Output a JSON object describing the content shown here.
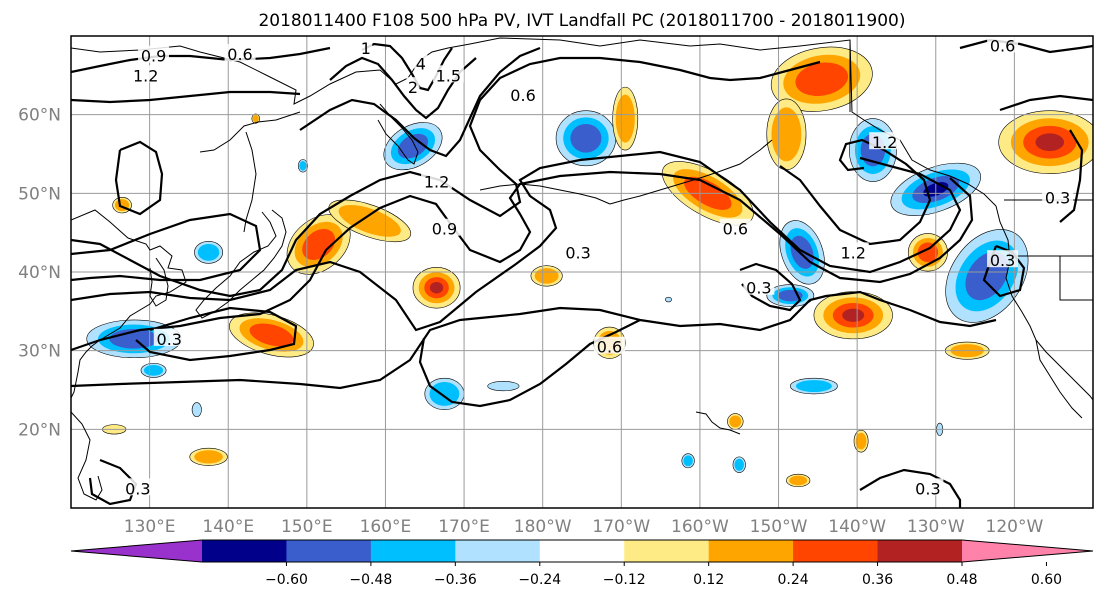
{
  "title": "2018011400 F108 500 hPa PV, IVT Landfall PC (2018011700 - 2018011900)",
  "map": {
    "lon_range": [
      120,
      250
    ],
    "lat_range": [
      10,
      70
    ],
    "lon_ticks": [
      {
        "value": 130,
        "label": "130°E"
      },
      {
        "value": 140,
        "label": "140°E"
      },
      {
        "value": 150,
        "label": "150°E"
      },
      {
        "value": 160,
        "label": "160°E"
      },
      {
        "value": 170,
        "label": "170°E"
      },
      {
        "value": 180,
        "label": "180°W"
      },
      {
        "value": 190,
        "label": "170°W"
      },
      {
        "value": 200,
        "label": "160°W"
      },
      {
        "value": 210,
        "label": "150°W"
      },
      {
        "value": 220,
        "label": "140°W"
      },
      {
        "value": 230,
        "label": "130°W"
      },
      {
        "value": 240,
        "label": "120°W"
      }
    ],
    "lat_ticks": [
      {
        "value": 20,
        "label": "20°N"
      },
      {
        "value": 30,
        "label": "30°N"
      },
      {
        "value": 40,
        "label": "40°N"
      },
      {
        "value": 50,
        "label": "50°N"
      },
      {
        "value": 60,
        "label": "60°N"
      }
    ],
    "grid": true
  },
  "contour_labels": [
    {
      "text": "0.9",
      "lon": 130.5,
      "lat": 67.5
    },
    {
      "text": "0.6",
      "lon": 141.5,
      "lat": 67.7
    },
    {
      "text": "1.2",
      "lon": 129.5,
      "lat": 65.0
    },
    {
      "text": "1",
      "lon": 157.5,
      "lat": 68.5
    },
    {
      "text": "4",
      "lon": 164.5,
      "lat": 66.5
    },
    {
      "text": "2",
      "lon": 163.5,
      "lat": 63.5
    },
    {
      "text": "1.5",
      "lon": 168.0,
      "lat": 65.0
    },
    {
      "text": "0.6",
      "lon": 177.5,
      "lat": 62.5
    },
    {
      "text": "1.2",
      "lon": 166.5,
      "lat": 51.5
    },
    {
      "text": "0.9",
      "lon": 167.5,
      "lat": 45.5
    },
    {
      "text": "0.3",
      "lon": 184.5,
      "lat": 42.5
    },
    {
      "text": "0.6",
      "lon": 204.5,
      "lat": 45.5
    },
    {
      "text": "0.3",
      "lon": 207.5,
      "lat": 38.0
    },
    {
      "text": "1.2",
      "lon": 219.5,
      "lat": 42.5
    },
    {
      "text": "1.2",
      "lon": 223.5,
      "lat": 56.5
    },
    {
      "text": "0.6",
      "lon": 188.5,
      "lat": 30.5
    },
    {
      "text": "0.6",
      "lon": 238.5,
      "lat": 68.8
    },
    {
      "text": "0.3",
      "lon": 229.0,
      "lat": 12.5
    },
    {
      "text": "0.3",
      "lon": 132.5,
      "lat": 31.5
    },
    {
      "text": "0.3",
      "lon": 128.5,
      "lat": 12.5
    },
    {
      "text": "0.3",
      "lon": 238.5,
      "lat": 41.5
    },
    {
      "text": "0.3",
      "lon": 245.5,
      "lat": 49.5
    }
  ],
  "colorbar": {
    "colors": [
      "#9932cc",
      "#00008b",
      "#3a5fcd",
      "#00bfff",
      "#b0e2ff",
      "#ffffff",
      "#ffeb85",
      "#ffa500",
      "#ff4500",
      "#b22222",
      "#ff82ab"
    ],
    "ticks": [
      "−0.60",
      "−0.48",
      "−0.36",
      "−0.24",
      "−0.12",
      "0.12",
      "0.24",
      "0.36",
      "0.48",
      "0.60"
    ]
  },
  "shading_levels": {
    "neg": [
      "#b0e2ff",
      "#00bfff",
      "#3a5fcd",
      "#00008b"
    ],
    "pos": [
      "#ffeb85",
      "#ffa500",
      "#ff4500",
      "#b22222"
    ]
  },
  "anomalies": [
    {
      "lon": 215.5,
      "lat": 64.5,
      "rx": 6.5,
      "ry": 4.0,
      "rot": -10,
      "sign": 1,
      "level": 3
    },
    {
      "lon": 211.0,
      "lat": 57.5,
      "rx": 2.5,
      "ry": 4.5,
      "rot": 0,
      "sign": 1,
      "level": 2
    },
    {
      "lon": 244.5,
      "lat": 56.5,
      "rx": 6.5,
      "ry": 4.0,
      "rot": 0,
      "sign": 1,
      "level": 4
    },
    {
      "lon": 185.5,
      "lat": 57.0,
      "rx": 3.8,
      "ry": 3.5,
      "rot": 0,
      "sign": -1,
      "level": 3
    },
    {
      "lon": 163.5,
      "lat": 56.0,
      "rx": 4.0,
      "ry": 2.6,
      "rot": -30,
      "sign": -1,
      "level": 3
    },
    {
      "lon": 190.5,
      "lat": 59.5,
      "rx": 1.6,
      "ry": 4.0,
      "rot": 0,
      "sign": 1,
      "level": 2
    },
    {
      "lon": 222.0,
      "lat": 55.5,
      "rx": 3.0,
      "ry": 4.0,
      "rot": 0,
      "sign": -1,
      "level": 3
    },
    {
      "lon": 230.0,
      "lat": 50.5,
      "rx": 6.0,
      "ry": 2.8,
      "rot": -20,
      "sign": -1,
      "level": 4
    },
    {
      "lon": 201.0,
      "lat": 50.0,
      "rx": 6.5,
      "ry": 2.8,
      "rot": 30,
      "sign": 1,
      "level": 3
    },
    {
      "lon": 213.0,
      "lat": 42.5,
      "rx": 2.6,
      "ry": 4.2,
      "rot": -20,
      "sign": -1,
      "level": 3
    },
    {
      "lon": 236.5,
      "lat": 39.5,
      "rx": 4.5,
      "ry": 6.5,
      "rot": 35,
      "sign": -1,
      "level": 3
    },
    {
      "lon": 229.0,
      "lat": 42.5,
      "rx": 2.5,
      "ry": 2.4,
      "rot": 0,
      "sign": 1,
      "level": 3
    },
    {
      "lon": 219.5,
      "lat": 34.5,
      "rx": 5.0,
      "ry": 3.0,
      "rot": 0,
      "sign": 1,
      "level": 4
    },
    {
      "lon": 151.5,
      "lat": 43.5,
      "rx": 4.5,
      "ry": 3.2,
      "rot": -40,
      "sign": 1,
      "level": 3
    },
    {
      "lon": 158.0,
      "lat": 46.5,
      "rx": 5.5,
      "ry": 2.0,
      "rot": 20,
      "sign": 1,
      "level": 2
    },
    {
      "lon": 145.5,
      "lat": 32.0,
      "rx": 5.5,
      "ry": 2.5,
      "rot": 15,
      "sign": 1,
      "level": 3
    },
    {
      "lon": 128.0,
      "lat": 31.5,
      "rx": 6.0,
      "ry": 2.4,
      "rot": 0,
      "sign": -1,
      "level": 3
    },
    {
      "lon": 166.5,
      "lat": 38.0,
      "rx": 3.0,
      "ry": 2.6,
      "rot": 0,
      "sign": 1,
      "level": 4
    },
    {
      "lon": 180.5,
      "lat": 39.5,
      "rx": 2.0,
      "ry": 1.3,
      "rot": 0,
      "sign": 1,
      "level": 2
    },
    {
      "lon": 211.5,
      "lat": 37.0,
      "rx": 3.0,
      "ry": 1.4,
      "rot": 0,
      "sign": -1,
      "level": 3
    },
    {
      "lon": 188.5,
      "lat": 31.0,
      "rx": 2.0,
      "ry": 2.0,
      "rot": 0,
      "sign": 1,
      "level": 2
    },
    {
      "lon": 149.5,
      "lat": 53.5,
      "rx": 0.6,
      "ry": 0.8,
      "rot": 0,
      "sign": -1,
      "level": 2
    },
    {
      "lon": 143.5,
      "lat": 59.5,
      "rx": 0.5,
      "ry": 0.6,
      "rot": 0,
      "sign": 1,
      "level": 2
    },
    {
      "lon": 137.5,
      "lat": 42.5,
      "rx": 1.8,
      "ry": 1.4,
      "rot": 0,
      "sign": -1,
      "level": 2
    },
    {
      "lon": 126.5,
      "lat": 48.5,
      "rx": 1.2,
      "ry": 1.0,
      "rot": 0,
      "sign": 1,
      "level": 2
    },
    {
      "lon": 130.5,
      "lat": 27.5,
      "rx": 1.6,
      "ry": 0.9,
      "rot": 0,
      "sign": -1,
      "level": 2
    },
    {
      "lon": 167.5,
      "lat": 24.5,
      "rx": 2.5,
      "ry": 2.0,
      "rot": 0,
      "sign": -1,
      "level": 2
    },
    {
      "lon": 175.0,
      "lat": 25.5,
      "rx": 2.0,
      "ry": 0.6,
      "rot": 0,
      "sign": -1,
      "level": 1
    },
    {
      "lon": 196.0,
      "lat": 36.5,
      "rx": 0.4,
      "ry": 0.3,
      "rot": 0,
      "sign": -1,
      "level": 1
    },
    {
      "lon": 214.5,
      "lat": 25.5,
      "rx": 3.0,
      "ry": 1.0,
      "rot": 0,
      "sign": -1,
      "level": 2
    },
    {
      "lon": 234.0,
      "lat": 30.0,
      "rx": 2.8,
      "ry": 1.1,
      "rot": 0,
      "sign": 1,
      "level": 2
    },
    {
      "lon": 137.5,
      "lat": 16.5,
      "rx": 2.4,
      "ry": 1.1,
      "rot": 0,
      "sign": 1,
      "level": 2
    },
    {
      "lon": 125.5,
      "lat": 20.0,
      "rx": 1.5,
      "ry": 0.6,
      "rot": 0,
      "sign": 1,
      "level": 1
    },
    {
      "lon": 136.0,
      "lat": 22.5,
      "rx": 0.6,
      "ry": 0.9,
      "rot": 0,
      "sign": -1,
      "level": 1
    },
    {
      "lon": 220.5,
      "lat": 18.5,
      "rx": 0.9,
      "ry": 1.4,
      "rot": 0,
      "sign": 1,
      "level": 2
    },
    {
      "lon": 212.5,
      "lat": 13.5,
      "rx": 1.5,
      "ry": 0.8,
      "rot": 0,
      "sign": 1,
      "level": 2
    },
    {
      "lon": 198.5,
      "lat": 16.0,
      "rx": 0.8,
      "ry": 0.9,
      "rot": 0,
      "sign": -1,
      "level": 2
    },
    {
      "lon": 205.0,
      "lat": 15.5,
      "rx": 0.8,
      "ry": 1.0,
      "rot": 0,
      "sign": -1,
      "level": 2
    },
    {
      "lon": 230.5,
      "lat": 20.0,
      "rx": 0.4,
      "ry": 0.8,
      "rot": 0,
      "sign": -1,
      "level": 1
    },
    {
      "lon": 204.5,
      "lat": 21.0,
      "rx": 1.0,
      "ry": 1.0,
      "rot": 0,
      "sign": 1,
      "level": 2
    }
  ]
}
